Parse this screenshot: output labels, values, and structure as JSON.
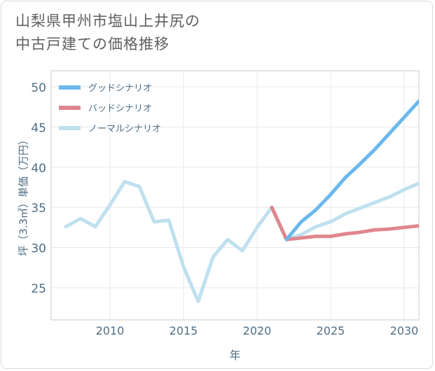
{
  "title": {
    "line1": "山梨県甲州市塩山上井尻の",
    "line2": "中古戸建ての価格推移"
  },
  "colors": {
    "good": "#6bb8ec",
    "bad": "#e0868f",
    "normal": "#bfe0ee",
    "axis_text": "#4f6e86",
    "grid": "#e3e8ec"
  },
  "chart_data": {
    "type": "line",
    "xlabel": "年",
    "ylabel": "坪（3.3㎡）単価（万円）",
    "xlim": [
      2006,
      2031
    ],
    "ylim": [
      21,
      52
    ],
    "x_ticks": [
      2010,
      2015,
      2020,
      2025,
      2030
    ],
    "y_ticks": [
      25,
      30,
      35,
      40,
      45,
      50
    ],
    "legend": [
      "グッドシナリオ",
      "バッドシナリオ",
      "ノーマルシナリオ"
    ],
    "series": [
      {
        "name": "ノーマルシナリオ",
        "color": "#bfe0ee",
        "x": [
          2007,
          2008,
          2009,
          2010,
          2011,
          2012,
          2013,
          2014,
          2015,
          2016,
          2017,
          2018,
          2019,
          2020,
          2021,
          2022,
          2023,
          2024,
          2025,
          2026,
          2027,
          2028,
          2029,
          2030,
          2031
        ],
        "values": [
          32.6,
          33.6,
          32.6,
          35.3,
          38.2,
          37.6,
          33.2,
          33.4,
          27.6,
          23.3,
          28.8,
          31.0,
          29.6,
          32.5,
          35.0,
          31.0,
          31.6,
          32.6,
          33.2,
          34.2,
          34.9,
          35.6,
          36.3,
          37.2,
          38.0
        ]
      },
      {
        "name": "バッドシナリオ",
        "color": "#e0868f",
        "x": [
          2021,
          2022,
          2023,
          2024,
          2025,
          2026,
          2027,
          2028,
          2029,
          2030,
          2031
        ],
        "values": [
          35.0,
          31.0,
          31.2,
          31.4,
          31.4,
          31.7,
          31.9,
          32.2,
          32.3,
          32.5,
          32.7
        ]
      },
      {
        "name": "グッドシナリオ",
        "color": "#6bb8ec",
        "x": [
          2022,
          2023,
          2024,
          2025,
          2026,
          2027,
          2028,
          2029,
          2030,
          2031
        ],
        "values": [
          31.0,
          33.2,
          34.7,
          36.6,
          38.7,
          40.4,
          42.2,
          44.2,
          46.2,
          48.2
        ]
      }
    ]
  }
}
